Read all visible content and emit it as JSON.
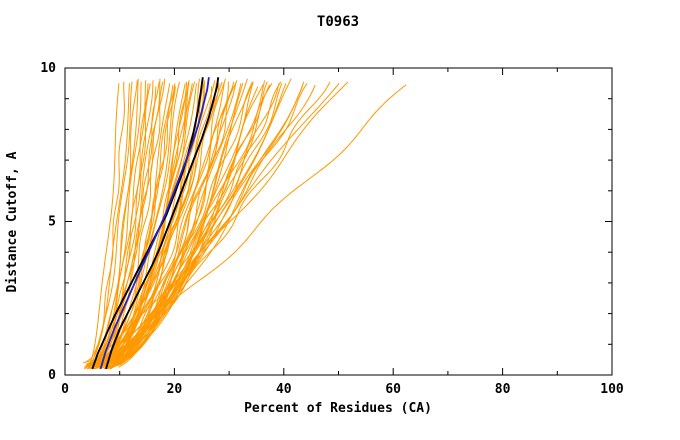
{
  "page": {
    "title": "T0963"
  },
  "chart_data": {
    "type": "line",
    "title": "T0963",
    "xlabel": "Percent of Residues (CA)",
    "ylabel": "Distance Cutoff, A",
    "xlim": [
      0,
      100
    ],
    "ylim": [
      0,
      10
    ],
    "grid": false,
    "legend": "none",
    "x_major_ticks": [
      0,
      20,
      40,
      60,
      80,
      100
    ],
    "x_tick_labels": [
      "0",
      "20",
      "40",
      "60",
      "80",
      "100"
    ],
    "x_minor_step": 10,
    "y_major_ticks": [
      0,
      5,
      10
    ],
    "y_tick_labels": [
      "0",
      "5",
      "10"
    ],
    "y_minor_step": 1,
    "colors": {
      "model_curves": "#FF9900",
      "highlighted_curves": "#000000",
      "best_curve": "#2222CC",
      "frame": "#000000",
      "background": "#FFFFFF"
    },
    "description": "Cumulative percent of CA residues under each distance cutoff for many predicted models; orange = all models (approximate digitized start/end/shape), black = highlighted models, blue = best model.",
    "model_curves_params_note": "each entry = [x_at_cutoff0, x_at_cutoff10, shape_exponent]",
    "model_curves": [
      [
        3.5,
        12,
        0.5
      ],
      [
        4,
        14,
        0.45
      ],
      [
        4.5,
        16,
        0.5
      ],
      [
        5,
        18,
        0.55
      ],
      [
        5.5,
        20,
        0.5
      ],
      [
        6,
        22,
        0.45
      ],
      [
        3.8,
        24,
        0.5
      ],
      [
        4.2,
        26,
        0.55
      ],
      [
        4.8,
        28,
        0.6
      ],
      [
        5.2,
        30,
        0.5
      ],
      [
        5.8,
        32,
        0.55
      ],
      [
        6.2,
        34,
        0.6
      ],
      [
        6.5,
        36,
        0.65
      ],
      [
        7,
        38,
        0.7
      ],
      [
        7.5,
        40,
        0.75
      ],
      [
        8,
        42,
        0.8
      ],
      [
        8.5,
        44,
        0.85
      ],
      [
        9,
        46,
        0.9
      ],
      [
        4,
        15,
        0.4
      ],
      [
        4.5,
        17,
        0.42
      ],
      [
        5,
        19,
        0.44
      ],
      [
        5.5,
        21,
        0.46
      ],
      [
        6,
        23,
        0.48
      ],
      [
        6.5,
        25,
        0.5
      ],
      [
        7,
        27,
        0.52
      ],
      [
        7.5,
        29,
        0.54
      ],
      [
        8,
        31,
        0.56
      ],
      [
        3.6,
        13,
        0.38
      ],
      [
        4.1,
        15.5,
        0.4
      ],
      [
        4.6,
        18,
        0.42
      ],
      [
        5.1,
        20.5,
        0.44
      ],
      [
        5.6,
        23,
        0.46
      ],
      [
        6.1,
        25.5,
        0.48
      ],
      [
        6.6,
        28,
        0.5
      ],
      [
        7.1,
        30.5,
        0.52
      ],
      [
        7.6,
        33,
        0.54
      ],
      [
        8.1,
        35.5,
        0.6
      ],
      [
        8.6,
        38,
        0.66
      ],
      [
        9,
        40.5,
        0.72
      ],
      [
        3.7,
        26,
        0.45
      ],
      [
        4.3,
        24,
        0.5
      ],
      [
        4.9,
        22,
        0.4
      ],
      [
        5.3,
        27,
        0.52
      ],
      [
        5.9,
        29,
        0.47
      ],
      [
        6.3,
        31,
        0.5
      ],
      [
        6.8,
        33,
        0.55
      ],
      [
        7.3,
        35,
        0.6
      ],
      [
        7.8,
        37,
        0.65
      ],
      [
        8.3,
        39,
        0.7
      ],
      [
        8.8,
        48,
        0.85
      ],
      [
        4.4,
        50,
        0.9
      ],
      [
        5.4,
        52,
        0.92
      ],
      [
        6.4,
        63,
        0.95
      ],
      [
        7.4,
        45,
        0.8
      ],
      [
        3.9,
        11,
        0.45
      ],
      [
        4.7,
        13.5,
        0.48
      ],
      [
        5.7,
        16.5,
        0.5
      ],
      [
        6.7,
        19.5,
        0.52
      ],
      [
        7.7,
        22.5,
        0.54
      ],
      [
        8.7,
        25.5,
        0.56
      ],
      [
        3.4,
        10,
        0.5
      ],
      [
        4.0,
        12.5,
        0.52
      ],
      [
        5.0,
        15,
        0.54
      ],
      [
        6.0,
        17.5,
        0.56
      ],
      [
        7.0,
        20,
        0.58
      ],
      [
        8.0,
        23,
        0.6
      ],
      [
        4.2,
        28.5,
        0.58
      ],
      [
        5.2,
        31.5,
        0.62
      ],
      [
        6.2,
        34.5,
        0.66
      ],
      [
        7.2,
        37.5,
        0.7
      ],
      [
        8.2,
        41,
        0.74
      ],
      [
        9.2,
        44,
        0.78
      ]
    ],
    "highlighted_curves": [
      [
        [
          5,
          0.2
        ],
        [
          6,
          0.7
        ],
        [
          7.5,
          1.3
        ],
        [
          9,
          1.9
        ],
        [
          11,
          2.6
        ],
        [
          13,
          3.3
        ],
        [
          15,
          4.0
        ],
        [
          17,
          4.7
        ],
        [
          18.5,
          5.2
        ],
        [
          20,
          5.9
        ],
        [
          21.5,
          6.6
        ],
        [
          22.5,
          7.2
        ],
        [
          23.5,
          7.9
        ],
        [
          24.3,
          8.6
        ],
        [
          24.8,
          9.2
        ],
        [
          25.2,
          9.7
        ]
      ],
      [
        [
          7.5,
          0.2
        ],
        [
          8.5,
          0.8
        ],
        [
          10,
          1.5
        ],
        [
          12,
          2.2
        ],
        [
          14,
          2.9
        ],
        [
          16,
          3.6
        ],
        [
          17.5,
          4.2
        ],
        [
          19,
          4.9
        ],
        [
          20.5,
          5.6
        ],
        [
          22,
          6.3
        ],
        [
          23.5,
          7.0
        ],
        [
          25,
          7.7
        ],
        [
          26.3,
          8.4
        ],
        [
          27.2,
          9.0
        ],
        [
          27.8,
          9.4
        ],
        [
          28,
          9.7
        ]
      ]
    ],
    "best_curve": [
      [
        6.5,
        0.2
      ],
      [
        7.5,
        0.8
      ],
      [
        9,
        1.5
      ],
      [
        11,
        2.3
      ],
      [
        13,
        3.1
      ],
      [
        15,
        3.9
      ],
      [
        16.8,
        4.6
      ],
      [
        18.5,
        5.3
      ],
      [
        20,
        6.0
      ],
      [
        21.5,
        6.7
      ],
      [
        23,
        7.4
      ],
      [
        24.3,
        8.1
      ],
      [
        25.3,
        8.8
      ],
      [
        26,
        9.3
      ],
      [
        26.3,
        9.7
      ]
    ]
  }
}
